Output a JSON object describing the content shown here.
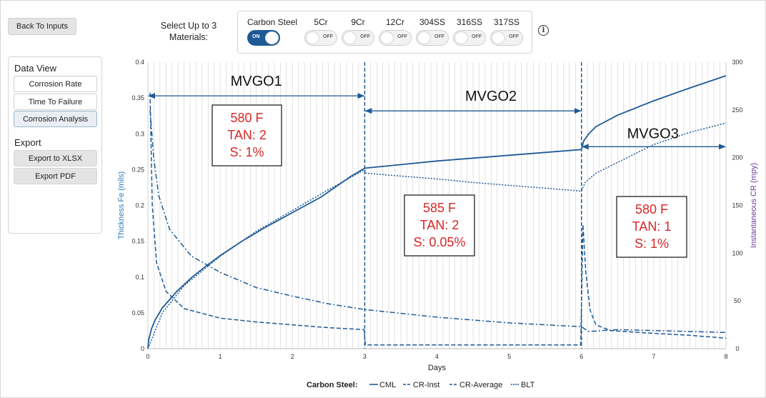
{
  "header": {
    "back_label": "Back To Inputs",
    "select_label_line1": "Select Up to 3",
    "select_label_line2": "Materials:"
  },
  "materials": [
    {
      "name": "Carbon Steel",
      "state": "ON",
      "on": true
    },
    {
      "name": "5Cr",
      "state": "OFF",
      "on": false
    },
    {
      "name": "9Cr",
      "state": "OFF",
      "on": false
    },
    {
      "name": "12Cr",
      "state": "OFF",
      "on": false
    },
    {
      "name": "304SS",
      "state": "OFF",
      "on": false
    },
    {
      "name": "316SS",
      "state": "OFF",
      "on": false
    },
    {
      "name": "317SS",
      "state": "OFF",
      "on": false
    }
  ],
  "info_glyph": "i",
  "sidebar": {
    "data_view_heading": "Data View",
    "corrosion_rate": "Corrosion Rate",
    "time_to_failure": "Time To Failure",
    "corrosion_analysis": "Corrosion Analysis",
    "export_heading": "Export",
    "export_xlsx": "Export to XLSX",
    "export_pdf": "Export PDF"
  },
  "colors": {
    "series": "#1f5a96",
    "annotation_text": "#d62728",
    "right_axis": "#6a3d9a",
    "left_axis": "#2b7bb9",
    "grid": "#d0d0d0"
  },
  "chart_data": {
    "type": "line",
    "xlabel": "Days",
    "ylabel": "Thickness Fe (mils)",
    "y2label": "Instantaneous CR (mpy)",
    "xlim": [
      0,
      8
    ],
    "ylim": [
      0,
      0.4
    ],
    "y2lim": [
      0,
      300
    ],
    "xticks": [
      "0",
      "1",
      "2",
      "3",
      "4",
      "5",
      "6",
      "7",
      "8"
    ],
    "yticks": [
      "0",
      "0.05",
      "0.1",
      "0.15",
      "0.2",
      "0.25",
      "0.3",
      "0.35",
      "0.4"
    ],
    "y2ticks": [
      "0",
      "50",
      "100",
      "150",
      "200",
      "250",
      "300"
    ],
    "grid": true,
    "legend": {
      "title": "Carbon Steel:",
      "entries": [
        "CML",
        "CR-Inst",
        "CR-Average",
        "BLT"
      ]
    },
    "phase_boundaries": [
      3,
      6
    ],
    "phases": [
      {
        "name": "MVGO1",
        "x_start": 0,
        "x_end": 3,
        "arrow_y": 0.353,
        "temp": "580 F",
        "tan": "TAN: 2",
        "s": "S: 1%"
      },
      {
        "name": "MVGO2",
        "x_start": 3,
        "x_end": 6,
        "arrow_y": 0.332,
        "temp": "585 F",
        "tan": "TAN: 2",
        "s": "S: 0.05%"
      },
      {
        "name": "MVGO3",
        "x_start": 6,
        "x_end": 8,
        "arrow_y": 0.282,
        "temp": "580 F",
        "tan": "TAN: 1",
        "s": "S: 1%"
      }
    ],
    "series": [
      {
        "name": "CML",
        "axis": "left",
        "style": "solid",
        "x": [
          0,
          0.01,
          0.05,
          0.1,
          0.2,
          0.4,
          0.6,
          0.8,
          1.0,
          1.3,
          1.6,
          2.0,
          2.4,
          2.8,
          3.0,
          3.5,
          4.0,
          4.5,
          5.0,
          5.5,
          6.0,
          6.03,
          6.1,
          6.2,
          6.5,
          7.0,
          7.5,
          8.0
        ],
        "y": [
          0,
          0.012,
          0.028,
          0.04,
          0.057,
          0.08,
          0.099,
          0.115,
          0.13,
          0.15,
          0.168,
          0.19,
          0.212,
          0.24,
          0.252,
          0.257,
          0.262,
          0.266,
          0.27,
          0.274,
          0.278,
          0.29,
          0.3,
          0.31,
          0.326,
          0.346,
          0.364,
          0.381
        ]
      },
      {
        "name": "CR-Inst",
        "axis": "right",
        "style": "dashed",
        "x": [
          0.03,
          0.06,
          0.12,
          0.25,
          0.5,
          1.0,
          1.5,
          2.0,
          2.5,
          2.99,
          3.01,
          3.5,
          4.0,
          5.0,
          5.99,
          6.02,
          6.06,
          6.12,
          6.2,
          6.4,
          6.8,
          7.5,
          8.0
        ],
        "y": [
          268,
          150,
          90,
          60,
          42,
          32,
          28,
          25,
          22,
          20,
          4,
          4,
          4,
          4,
          4,
          130,
          80,
          40,
          25,
          19,
          17,
          14,
          11
        ]
      },
      {
        "name": "CR-Average",
        "axis": "right",
        "style": "dashdot",
        "x": [
          0.03,
          0.08,
          0.15,
          0.3,
          0.6,
          1.0,
          1.5,
          2.0,
          2.5,
          3.0,
          3.5,
          4.0,
          4.5,
          5.0,
          5.5,
          6.0,
          6.1,
          6.5,
          7.0,
          7.5,
          8.0
        ],
        "y": [
          250,
          200,
          160,
          125,
          97,
          80,
          64,
          55,
          47,
          41,
          37,
          33,
          30,
          27,
          25,
          23,
          18,
          20,
          19,
          18,
          17
        ]
      },
      {
        "name": "BLT",
        "axis": "left",
        "style": "dotted",
        "x": [
          0,
          0.2,
          0.5,
          1.0,
          1.5,
          2.0,
          2.5,
          3.0,
          3.02,
          3.5,
          4.0,
          4.5,
          5.0,
          5.5,
          6.0,
          6.05,
          6.2,
          6.5,
          7.0,
          7.5,
          8.0
        ],
        "y": [
          0,
          0.05,
          0.088,
          0.129,
          0.164,
          0.193,
          0.222,
          0.25,
          0.245,
          0.241,
          0.237,
          0.232,
          0.228,
          0.224,
          0.22,
          0.232,
          0.245,
          0.26,
          0.285,
          0.302,
          0.315
        ]
      }
    ]
  }
}
